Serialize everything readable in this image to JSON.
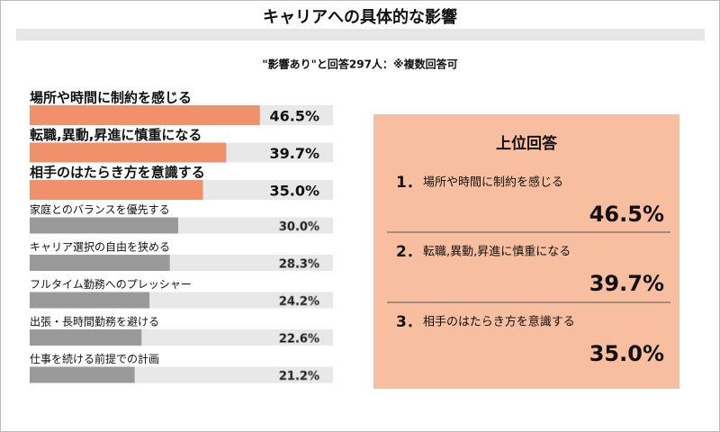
{
  "chart_data": {
    "type": "bar",
    "title": "キャリアへの具体的な影響",
    "subtitle": "\"影響あり\"と回答297人：※複数回答可",
    "categories": [
      "場所や時間に制約を感じる",
      "転職,異動,昇進に慎重になる",
      "相手のはたらき方を意識する",
      "家庭とのバランスを優先する",
      "キャリア選択の自由を狭める",
      "フルタイム勤務へのプレッシャー",
      "出張・長時間勤務を避ける",
      "仕事を続ける前提での計画"
    ],
    "values": [
      46.5,
      39.7,
      35.0,
      30.0,
      28.3,
      24.2,
      22.6,
      21.2
    ],
    "value_labels": [
      "46.5%",
      "39.7%",
      "35.0%",
      "30.0%",
      "28.3%",
      "24.2%",
      "22.6%",
      "21.2%"
    ],
    "colors": [
      "#f0916b",
      "#f0916b",
      "#f0916b",
      "#9a9a9a",
      "#9a9a9a",
      "#9a9a9a",
      "#9a9a9a",
      "#9a9a9a"
    ]
  },
  "panel": {
    "title": "上位回答",
    "ranks": [
      "1．",
      "2．",
      "3．"
    ]
  }
}
